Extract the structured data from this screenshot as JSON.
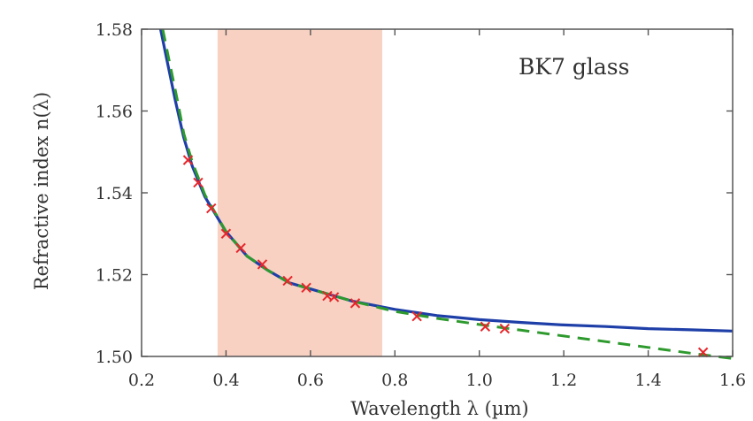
{
  "chart_data": {
    "type": "line",
    "title": "",
    "annotation": "BK7 glass",
    "xlabel": "Wavelength λ (µm)",
    "ylabel": "Refractive index n(λ)",
    "xlim": [
      0.2,
      1.6
    ],
    "ylim": [
      1.5,
      1.58
    ],
    "grid": false,
    "visible_spectrum_band": [
      0.38,
      0.77
    ],
    "x_ticks": [
      {
        "value": 0.2,
        "label": "0.2"
      },
      {
        "value": 0.4,
        "label": "0.4"
      },
      {
        "value": 0.6,
        "label": "0.6"
      },
      {
        "value": 0.8,
        "label": "0.8"
      },
      {
        "value": 1.0,
        "label": "1.0"
      },
      {
        "value": 1.2,
        "label": "1.2"
      },
      {
        "value": 1.4,
        "label": "1.4"
      },
      {
        "value": 1.6,
        "label": "1.6"
      }
    ],
    "y_ticks": [
      {
        "value": 1.5,
        "label": "1.50"
      },
      {
        "value": 1.52,
        "label": "1.52"
      },
      {
        "value": 1.54,
        "label": "1.54"
      },
      {
        "value": 1.56,
        "label": "1.56"
      },
      {
        "value": 1.58,
        "label": "1.58"
      }
    ],
    "series": [
      {
        "style": "solid",
        "color": "#1f3fa8",
        "points": [
          [
            0.245,
            1.58
          ],
          [
            0.26,
            1.5725
          ],
          [
            0.28,
            1.5625
          ],
          [
            0.3,
            1.5535
          ],
          [
            0.32,
            1.5465
          ],
          [
            0.35,
            1.539
          ],
          [
            0.4,
            1.5305
          ],
          [
            0.45,
            1.5245
          ],
          [
            0.5,
            1.521
          ],
          [
            0.55,
            1.518
          ],
          [
            0.6,
            1.5165
          ],
          [
            0.65,
            1.515
          ],
          [
            0.7,
            1.5135
          ],
          [
            0.8,
            1.5115
          ],
          [
            0.9,
            1.51
          ],
          [
            1.0,
            1.509
          ],
          [
            1.1,
            1.5083
          ],
          [
            1.2,
            1.5077
          ],
          [
            1.3,
            1.5073
          ],
          [
            1.4,
            1.5068
          ],
          [
            1.5,
            1.5065
          ],
          [
            1.6,
            1.5062
          ]
        ]
      },
      {
        "style": "dashed",
        "color": "#2e9a2e",
        "points": [
          [
            0.25,
            1.58
          ],
          [
            0.265,
            1.5725
          ],
          [
            0.285,
            1.5625
          ],
          [
            0.3,
            1.5545
          ],
          [
            0.32,
            1.5475
          ],
          [
            0.35,
            1.5395
          ],
          [
            0.4,
            1.5305
          ],
          [
            0.45,
            1.5245
          ],
          [
            0.5,
            1.521
          ],
          [
            0.55,
            1.518
          ],
          [
            0.6,
            1.5165
          ],
          [
            0.65,
            1.515
          ],
          [
            0.7,
            1.5135
          ],
          [
            0.8,
            1.511
          ],
          [
            0.9,
            1.5093
          ],
          [
            1.0,
            1.5078
          ],
          [
            1.1,
            1.5064
          ],
          [
            1.2,
            1.505
          ],
          [
            1.3,
            1.5036
          ],
          [
            1.4,
            1.5022
          ],
          [
            1.5,
            1.5008
          ],
          [
            1.6,
            1.4995
          ]
        ]
      },
      {
        "style": "markers",
        "marker": "x",
        "color": "#e8262b",
        "points": [
          [
            0.31,
            1.548
          ],
          [
            0.334,
            1.5425
          ],
          [
            0.365,
            1.5362
          ],
          [
            0.4,
            1.53
          ],
          [
            0.435,
            1.5265
          ],
          [
            0.486,
            1.5225
          ],
          [
            0.546,
            1.5185
          ],
          [
            0.59,
            1.5168
          ],
          [
            0.64,
            1.5148
          ],
          [
            0.656,
            1.5145
          ],
          [
            0.706,
            1.513
          ],
          [
            0.852,
            1.5098
          ],
          [
            1.014,
            1.5073
          ],
          [
            1.06,
            1.5068
          ],
          [
            1.53,
            1.501
          ]
        ]
      }
    ]
  }
}
